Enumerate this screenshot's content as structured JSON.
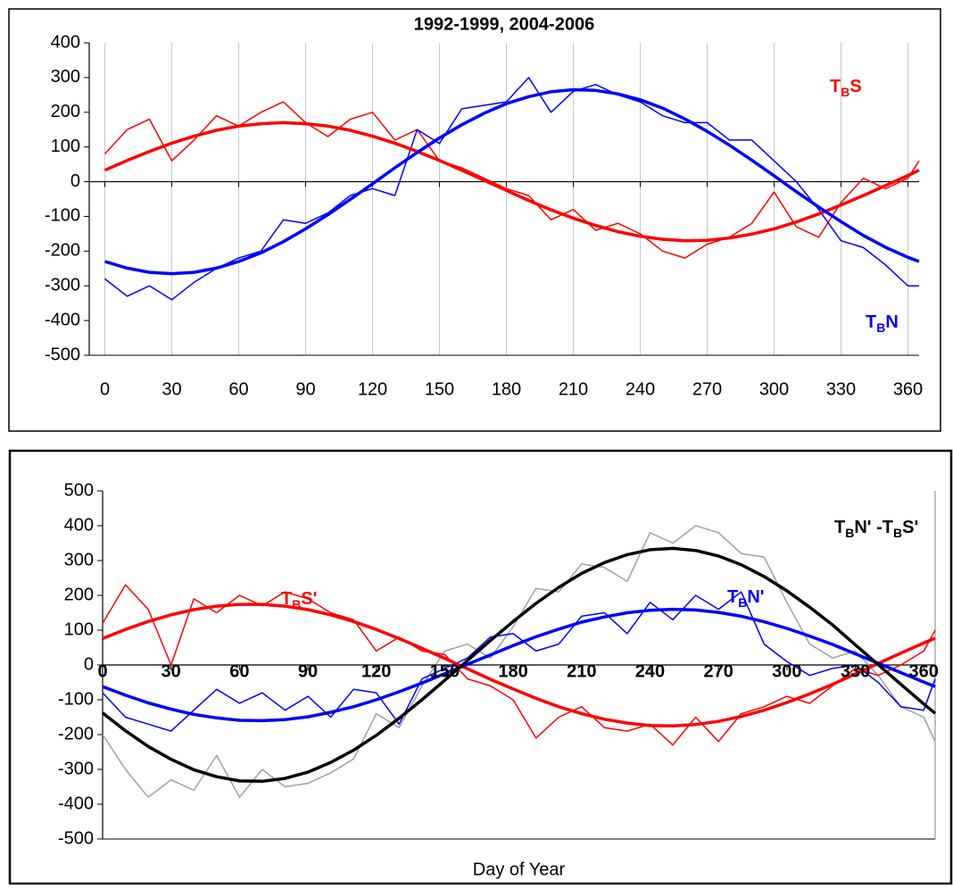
{
  "chart_data": [
    {
      "type": "line",
      "title": "1992-1999, 2004-2006",
      "x": [
        0,
        10,
        20,
        30,
        40,
        50,
        60,
        70,
        80,
        90,
        100,
        110,
        120,
        130,
        140,
        150,
        160,
        170,
        180,
        190,
        200,
        210,
        220,
        230,
        240,
        250,
        260,
        270,
        280,
        290,
        300,
        310,
        320,
        330,
        340,
        350,
        360,
        365
      ],
      "xlim": [
        -7,
        365
      ],
      "ylim": [
        -500,
        400
      ],
      "xticks": [
        0,
        30,
        60,
        90,
        120,
        150,
        180,
        210,
        240,
        270,
        300,
        330,
        360
      ],
      "yticks": [
        -500,
        -400,
        -300,
        -200,
        -100,
        0,
        100,
        200,
        300,
        400
      ],
      "grid": "x",
      "tick_label_style": "plain",
      "series": [
        {
          "color": "#ff0000",
          "line_width": 1.5,
          "values": [
            80,
            150,
            180,
            60,
            120,
            190,
            160,
            200,
            230,
            170,
            130,
            180,
            200,
            120,
            150,
            60,
            40,
            10,
            -20,
            -40,
            -110,
            -80,
            -140,
            -120,
            -150,
            -200,
            -220,
            -180,
            -160,
            -120,
            -30,
            -130,
            -160,
            -60,
            10,
            -20,
            10,
            60
          ]
        },
        {
          "color": "#0000ff",
          "line_width": 1.5,
          "values": [
            -280,
            -330,
            -300,
            -340,
            -290,
            -250,
            -220,
            -200,
            -110,
            -120,
            -90,
            -40,
            -20,
            -40,
            150,
            110,
            210,
            220,
            230,
            300,
            200,
            260,
            280,
            250,
            230,
            190,
            170,
            170,
            120,
            120,
            60,
            0,
            -80,
            -170,
            -190,
            -240,
            -300,
            -300
          ]
        },
        {
          "color": "#ff0000",
          "line_width": 3.5,
          "label": [
            "T",
            "B",
            "S"
          ],
          "values": [
            33,
            61,
            87,
            111,
            131,
            148,
            160,
            167,
            170,
            167,
            160,
            148,
            131,
            111,
            87,
            61,
            33,
            4,
            -25,
            -54,
            -81,
            -105,
            -126,
            -144,
            -157,
            -166,
            -170,
            -169,
            -162,
            -151,
            -136,
            -116,
            -93,
            -67,
            -40,
            -11,
            18,
            33
          ]
        },
        {
          "color": "#0000ff",
          "line_width": 3.5,
          "label": [
            "T",
            "B",
            "N"
          ],
          "values": [
            -230,
            -249,
            -261,
            -265,
            -261,
            -249,
            -230,
            -205,
            -173,
            -136,
            -95,
            -51,
            -6,
            40,
            84,
            126,
            164,
            197,
            225,
            245,
            259,
            265,
            263,
            253,
            236,
            212,
            181,
            145,
            105,
            62,
            17,
            -29,
            -73,
            -115,
            -155,
            -189,
            -218,
            -230
          ]
        }
      ]
    },
    {
      "type": "line",
      "x_label": "Day of Year",
      "x": [
        0,
        10,
        20,
        30,
        40,
        50,
        60,
        70,
        80,
        90,
        100,
        110,
        120,
        130,
        140,
        150,
        160,
        170,
        180,
        190,
        200,
        210,
        220,
        230,
        240,
        250,
        260,
        270,
        280,
        290,
        300,
        310,
        320,
        330,
        340,
        350,
        360,
        365
      ],
      "xlim": [
        0,
        365
      ],
      "ylim": [
        -500,
        500
      ],
      "xticks": [
        0,
        30,
        60,
        90,
        120,
        150,
        180,
        210,
        240,
        270,
        300,
        330,
        360
      ],
      "yticks": [
        -500,
        -400,
        -300,
        -200,
        -100,
        0,
        100,
        200,
        300,
        400,
        500
      ],
      "grid": "none",
      "tick_label_style": "bold-on-axis",
      "series": [
        {
          "color": "#a0a0a0",
          "line_width": 1.5,
          "values": [
            -200,
            -300,
            -380,
            -330,
            -360,
            -260,
            -380,
            -300,
            -350,
            -340,
            -310,
            -270,
            -140,
            -180,
            -60,
            40,
            60,
            20,
            110,
            220,
            210,
            290,
            280,
            240,
            380,
            350,
            400,
            380,
            320,
            310,
            180,
            60,
            20,
            40,
            -30,
            -120,
            -150,
            -220
          ]
        },
        {
          "color": "#ff0000",
          "line_width": 1.5,
          "values": [
            120,
            230,
            160,
            0,
            190,
            150,
            200,
            170,
            210,
            190,
            150,
            130,
            40,
            80,
            40,
            30,
            -40,
            -60,
            -100,
            -210,
            -150,
            -120,
            -180,
            -190,
            -170,
            -230,
            -150,
            -220,
            -140,
            -120,
            -90,
            -110,
            -60,
            -10,
            -30,
            0,
            40,
            100
          ]
        },
        {
          "color": "#0000ff",
          "line_width": 1.5,
          "values": [
            -80,
            -150,
            -170,
            -190,
            -130,
            -70,
            -110,
            -80,
            -130,
            -90,
            -150,
            -70,
            -80,
            -170,
            -40,
            -10,
            20,
            80,
            90,
            40,
            60,
            140,
            150,
            90,
            180,
            130,
            200,
            160,
            210,
            60,
            10,
            -30,
            -10,
            0,
            -50,
            -120,
            -130,
            -40
          ]
        },
        {
          "color": "#ff0000",
          "line_width": 3.5,
          "label": [
            "T",
            "B",
            "S'"
          ],
          "values": [
            76,
            102,
            125,
            144,
            159,
            169,
            174,
            174,
            169,
            159,
            144,
            125,
            102,
            76,
            48,
            19,
            -11,
            -41,
            -69,
            -96,
            -120,
            -140,
            -156,
            -167,
            -174,
            -175,
            -171,
            -162,
            -148,
            -130,
            -108,
            -83,
            -56,
            -26,
            4,
            34,
            63,
            77
          ]
        },
        {
          "color": "#0000ff",
          "line_width": 3.5,
          "label": [
            "T",
            "B",
            "N'"
          ],
          "values": [
            -62,
            -87,
            -109,
            -127,
            -142,
            -152,
            -159,
            -160,
            -157,
            -149,
            -136,
            -120,
            -100,
            -77,
            -52,
            -25,
            2,
            29,
            56,
            81,
            103,
            123,
            138,
            150,
            157,
            160,
            158,
            151,
            140,
            124,
            105,
            83,
            59,
            32,
            5,
            -22,
            -49,
            -62
          ]
        },
        {
          "color": "#000000",
          "line_width": 3.5,
          "label": [
            "T",
            "B",
            "N' -T",
            "B",
            "S'"
          ],
          "values": [
            -138,
            -189,
            -234,
            -271,
            -301,
            -321,
            -333,
            -334,
            -326,
            -308,
            -280,
            -245,
            -202,
            -153,
            -100,
            -44,
            13,
            70,
            125,
            177,
            223,
            263,
            294,
            317,
            331,
            335,
            329,
            313,
            288,
            254,
            213,
            166,
            115,
            58,
            1,
            -56,
            -112,
            -139
          ]
        }
      ]
    }
  ]
}
